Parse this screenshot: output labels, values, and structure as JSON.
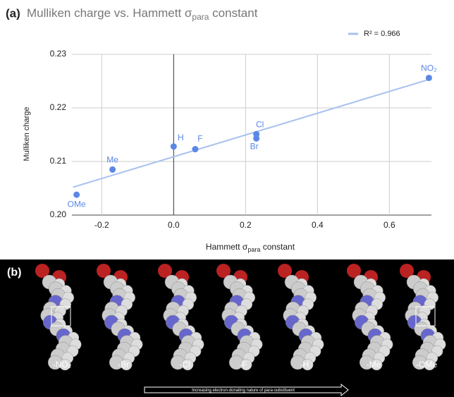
{
  "chart_data": {
    "type": "scatter",
    "panel_label": "(a)",
    "title": [
      "Mulliken charge vs. Hammett σ",
      "para",
      " constant"
    ],
    "xlabel": [
      "Hammett σ",
      "para",
      " constant"
    ],
    "ylabel": "Mulliken charge",
    "x": [
      -0.27,
      -0.17,
      0.0,
      0.06,
      0.23,
      0.23,
      0.71
    ],
    "values": [
      0.2038,
      0.2085,
      0.2128,
      0.2123,
      0.2151,
      0.2143,
      0.2256
    ],
    "point_labels": [
      "OMe",
      "Me",
      "H",
      "F",
      "Cl",
      "Br",
      "NO₂"
    ],
    "color": "#5b87e5",
    "trendline": {
      "name": "R² = 0.966",
      "color": "#a8c1ef",
      "x": [
        -0.28,
        0.71
      ],
      "values": [
        0.2052,
        0.2253
      ]
    },
    "xlim": [
      -0.283,
      0.717
    ],
    "ylim": [
      0.2,
      0.23
    ],
    "xticks": [
      -0.2,
      {
        "value": 0,
        "label": "0.0"
      },
      0.2,
      0.4,
      0.6
    ],
    "yticks": [
      {
        "value": 0.2,
        "label": "0.20"
      },
      0.21,
      0.22,
      0.23
    ],
    "grid": true,
    "legend": "top-right"
  },
  "panel_b": {
    "label": "(b)",
    "molecules": [
      "-NO₂",
      "-Br",
      "-Cl",
      "-F",
      "-H",
      "-Me",
      "-OMe"
    ],
    "arrow_text": [
      "Increasing electron-donating nature of ",
      "para",
      "-substituent"
    ]
  }
}
